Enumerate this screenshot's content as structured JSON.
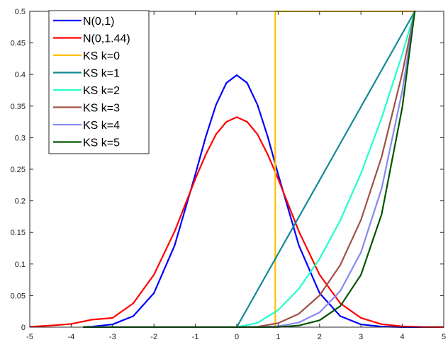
{
  "chart_data": {
    "type": "line",
    "title": "",
    "xlabel": "",
    "ylabel": "",
    "xlim": [
      -5,
      5
    ],
    "ylim": [
      0,
      0.5
    ],
    "xticks": [
      -5,
      -4,
      -3,
      -2,
      -1,
      0,
      1,
      2,
      3,
      4,
      5
    ],
    "yticks": [
      0,
      0.05,
      0.1,
      0.15,
      0.2,
      0.25,
      0.3,
      0.35,
      0.4,
      0.45,
      0.5
    ],
    "xtick_labels": [
      "-5",
      "-4",
      "-3",
      "-2",
      "-1",
      "0",
      "1",
      "2",
      "3",
      "4",
      "5"
    ],
    "ytick_labels": [
      "0",
      "0.05",
      "0.1",
      "0.15",
      "0.2",
      "0.25",
      "0.3",
      "0.35",
      "0.4",
      "0.45",
      "0.5"
    ],
    "grid": false,
    "legend_position": "top-left",
    "series": [
      {
        "name": "N(0,1)",
        "color": "#0000ff",
        "x": [
          -3.7,
          -3.5,
          -3,
          -2.5,
          -2,
          -1.5,
          -1,
          -0.75,
          -0.5,
          -0.25,
          0,
          0.25,
          0.5,
          0.75,
          1,
          1.5,
          2,
          2.5,
          3,
          3.5,
          4,
          4.5,
          5
        ],
        "y": [
          0.0004,
          0.0009,
          0.0044,
          0.0175,
          0.054,
          0.1295,
          0.242,
          0.3011,
          0.3521,
          0.3867,
          0.3989,
          0.3867,
          0.3521,
          0.3011,
          0.242,
          0.1295,
          0.054,
          0.0175,
          0.0044,
          0.0009,
          0.0001,
          0,
          0
        ]
      },
      {
        "name": "N(0,1.44)",
        "color": "#ff0000",
        "x": [
          -5,
          -4.5,
          -4,
          -3.5,
          -3,
          -2.5,
          -2,
          -1.5,
          -1,
          -0.75,
          -0.5,
          -0.25,
          0,
          0.25,
          0.5,
          0.75,
          1,
          1.5,
          2,
          2.5,
          3,
          3.5,
          4,
          4.5,
          5
        ],
        "y": [
          0.0006,
          0.0025,
          0.0051,
          0.0119,
          0.0146,
          0.0378,
          0.0831,
          0.1517,
          0.2348,
          0.2731,
          0.3054,
          0.3251,
          0.3325,
          0.3251,
          0.3054,
          0.2731,
          0.2348,
          0.1517,
          0.0831,
          0.0378,
          0.0146,
          0.0047,
          0.0013,
          0.0003,
          0.0001
        ]
      },
      {
        "name": "KS k=0",
        "color": "#ffc000",
        "x": [
          -3.7,
          0.93,
          0.93,
          4.3
        ],
        "y": [
          0,
          0,
          0.5,
          0.5
        ]
      },
      {
        "name": "KS k=1",
        "color": "#138a94",
        "x": [
          -3.7,
          0,
          4.3
        ],
        "y": [
          0,
          0,
          0.5
        ]
      },
      {
        "name": "KS k=2",
        "color": "#22ffcc",
        "x": [
          -3.7,
          0,
          0.5,
          1,
          1.5,
          2,
          2.5,
          3,
          3.5,
          4,
          4.3
        ],
        "y": [
          0,
          0,
          0.0068,
          0.027,
          0.0608,
          0.1082,
          0.169,
          0.2434,
          0.3313,
          0.4327,
          0.5
        ]
      },
      {
        "name": "KS k=3",
        "color": "#a05048",
        "x": [
          -3.7,
          0,
          0.5,
          1,
          1.5,
          2,
          2.5,
          3,
          3.5,
          4,
          4.3
        ],
        "y": [
          0,
          0,
          0.0008,
          0.0063,
          0.0212,
          0.0503,
          0.0983,
          0.1698,
          0.2697,
          0.4025,
          0.5
        ]
      },
      {
        "name": "KS k=4",
        "color": "#8888ee",
        "x": [
          -3.7,
          0,
          0.5,
          1,
          1.5,
          2,
          2.5,
          3,
          3.5,
          4,
          4.3
        ],
        "y": [
          0,
          0,
          0.0001,
          0.0015,
          0.0074,
          0.0234,
          0.0572,
          0.1185,
          0.2196,
          0.3745,
          0.5
        ]
      },
      {
        "name": "KS k=5",
        "color": "#005500",
        "x": [
          -3.7,
          0,
          0.5,
          1,
          1.5,
          2,
          2.5,
          3,
          3.5,
          4,
          4.3
        ],
        "y": [
          0,
          0,
          0,
          0.0003,
          0.0026,
          0.0109,
          0.0333,
          0.0828,
          0.1788,
          0.3485,
          0.5
        ]
      }
    ]
  }
}
